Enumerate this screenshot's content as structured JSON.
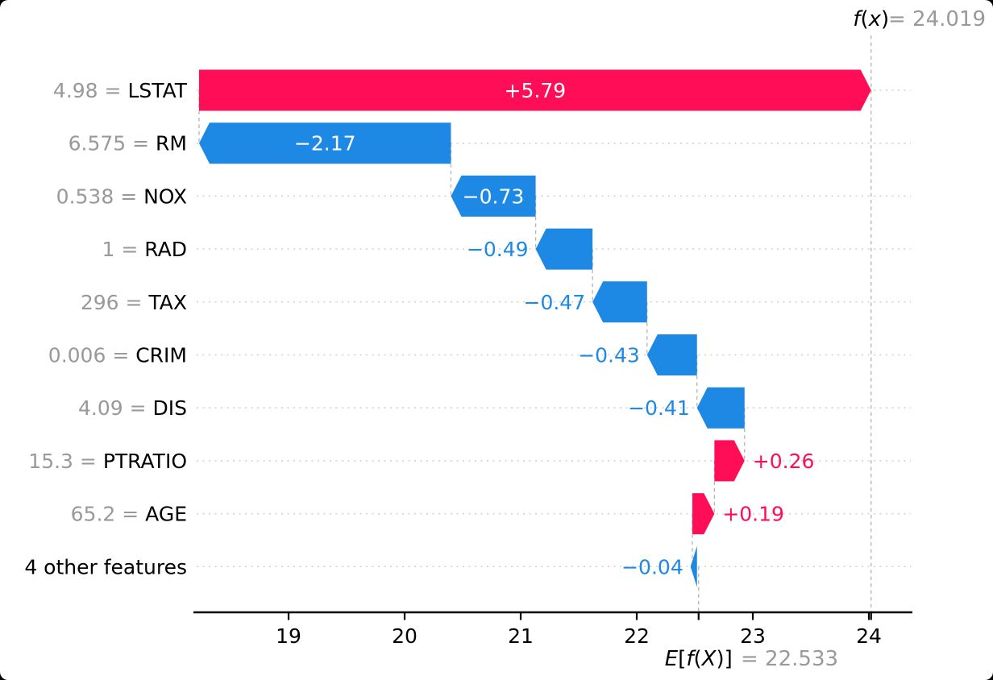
{
  "figure": {
    "fx_annotation": {
      "math": "f(x)",
      "eq": "= 24.019"
    },
    "base_annotation": {
      "math": "E[f(X)]",
      "eq": "= 22.533"
    }
  },
  "colors": {
    "positive": "#ff0d57",
    "negative": "#1e88e5",
    "gray_text": "#999999",
    "black_text": "#000000",
    "white_label": "#ffffff",
    "row_dotted": "#cfcfcf",
    "dashed_line": "#b3b3b3",
    "axis": "#000000"
  },
  "chart_data": {
    "type": "waterfall",
    "library_style": "shap-waterfall",
    "fx_value": 24.019,
    "base_value": 22.533,
    "x_ticks": [
      19,
      20,
      21,
      22,
      23,
      24
    ],
    "x_axis_range": [
      18.18,
      24.4
    ],
    "rows": [
      {
        "value_label": "4.98",
        "feature": "LSTAT",
        "shap": 5.79,
        "display": "+5.79",
        "label_position": "inside"
      },
      {
        "value_label": "6.575",
        "feature": "RM",
        "shap": -2.17,
        "display": "−2.17",
        "label_position": "inside"
      },
      {
        "value_label": "0.538",
        "feature": "NOX",
        "shap": -0.73,
        "display": "−0.73",
        "label_position": "inside"
      },
      {
        "value_label": "1",
        "feature": "RAD",
        "shap": -0.49,
        "display": "−0.49",
        "label_position": "outside"
      },
      {
        "value_label": "296",
        "feature": "TAX",
        "shap": -0.47,
        "display": "−0.47",
        "label_position": "outside"
      },
      {
        "value_label": "0.006",
        "feature": "CRIM",
        "shap": -0.43,
        "display": "−0.43",
        "label_position": "outside"
      },
      {
        "value_label": "4.09",
        "feature": "DIS",
        "shap": -0.41,
        "display": "−0.41",
        "label_position": "outside"
      },
      {
        "value_label": "15.3",
        "feature": "PTRATIO",
        "shap": 0.26,
        "display": "+0.26",
        "label_position": "outside"
      },
      {
        "value_label": "65.2",
        "feature": "AGE",
        "shap": 0.19,
        "display": "+0.19",
        "label_position": "outside"
      },
      {
        "value_label": "",
        "feature": "4 other features",
        "shap": -0.04,
        "display": "−0.04",
        "label_position": "outside"
      }
    ]
  }
}
